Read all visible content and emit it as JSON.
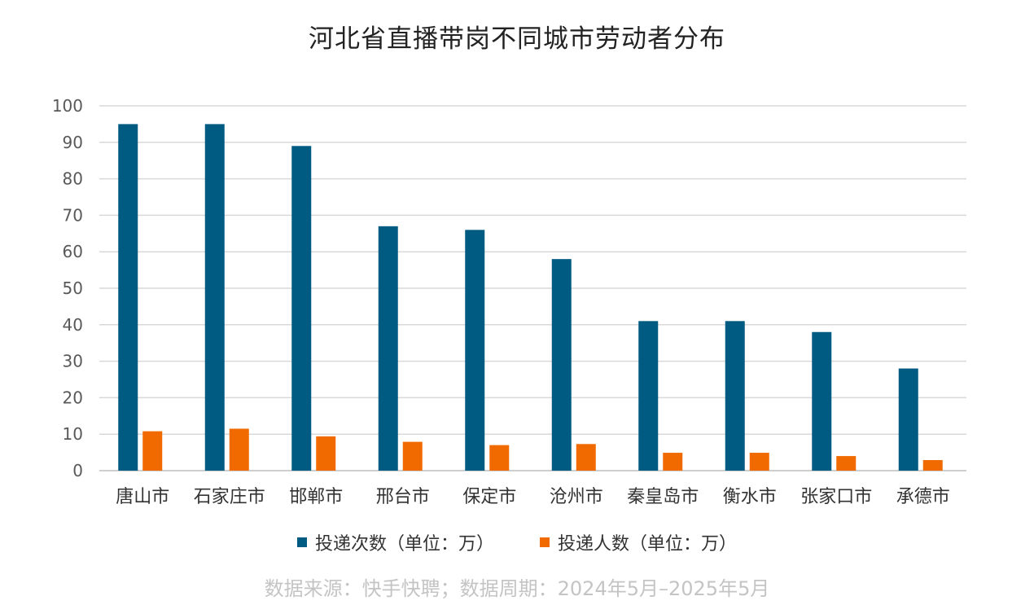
{
  "chart_data": {
    "type": "bar",
    "title": "河北省直播带岗不同城市劳动者分布",
    "categories": [
      "唐山市",
      "石家庄市",
      "邯郸市",
      "邢台市",
      "保定市",
      "沧州市",
      "秦皇岛市",
      "衡水市",
      "张家口市",
      "承德市"
    ],
    "series": [
      {
        "name": "投递次数（单位：万）",
        "color": "#005b82",
        "values": [
          95,
          95,
          89,
          67,
          66,
          58,
          41,
          41,
          38,
          28
        ]
      },
      {
        "name": "投递人数（单位：万）",
        "color": "#f06a00",
        "values": [
          10.8,
          11.5,
          9.4,
          7.9,
          7.0,
          7.3,
          4.9,
          4.9,
          4.0,
          2.9
        ]
      }
    ],
    "ylim": [
      0,
      100
    ],
    "yticks": [
      "0",
      "10",
      "20",
      "30",
      "40",
      "50",
      "60",
      "70",
      "80",
      "90",
      "100"
    ],
    "grid": true,
    "legend_position": "bottom",
    "source": "数据来源：快手快聘；数据周期：2024年5月–2025年5月"
  }
}
